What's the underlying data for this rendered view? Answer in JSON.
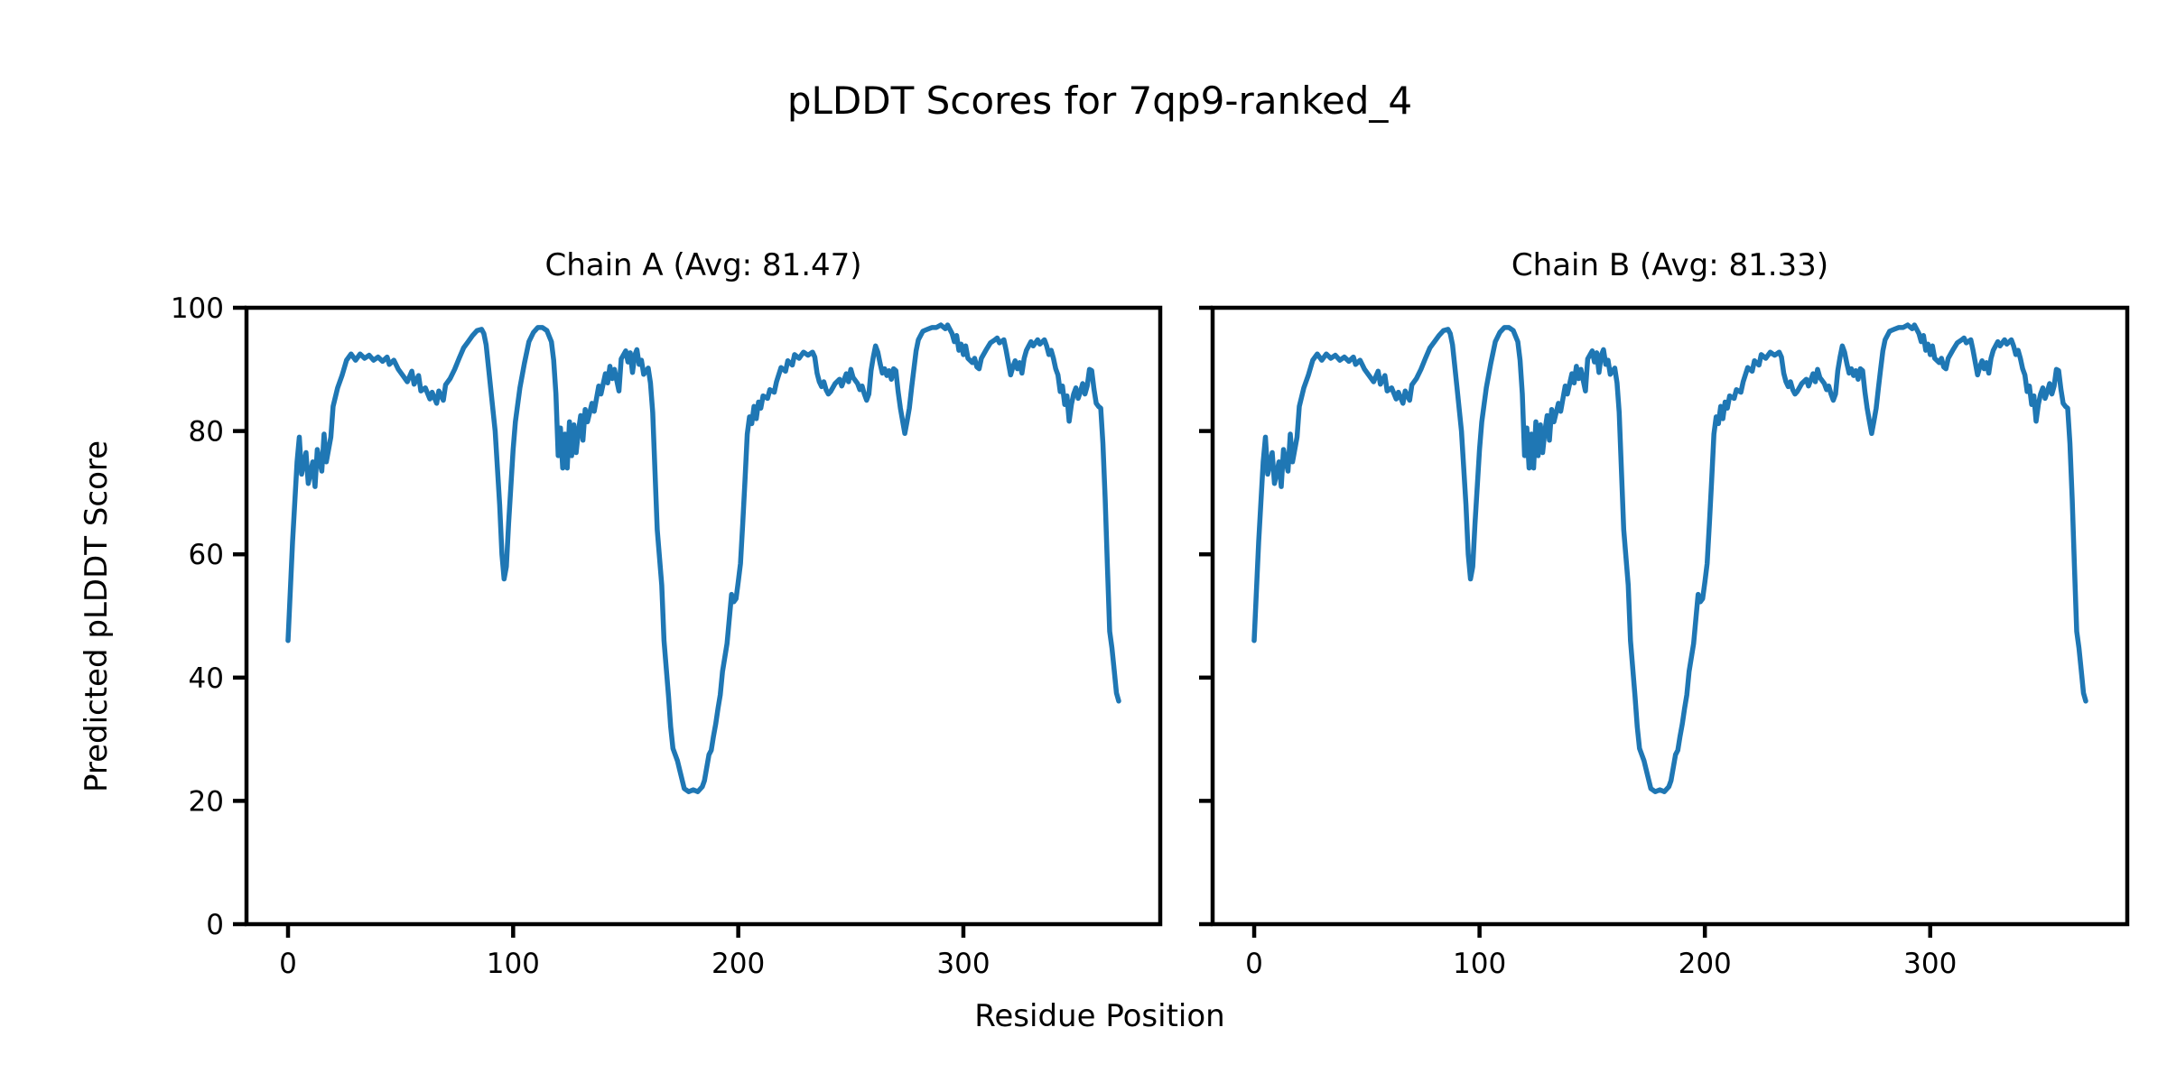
{
  "figure": {
    "suptitle": "pLDDT Scores for 7qp9-ranked_4",
    "supxlabel": "Residue Position",
    "ylabel": "Predicted pLDDT Score",
    "background": "#ffffff",
    "text_color": "#000000"
  },
  "chart_data": {
    "type": "line",
    "title": "pLDDT Scores for 7qp9-ranked_4",
    "xlabel": "Residue Position",
    "ylabel": "Predicted pLDDT Score",
    "line_color": "#1f77b4",
    "axis_color": "#000000",
    "grid": false,
    "legend": "none",
    "xlim": [
      -18.45,
      387.45
    ],
    "ylim": [
      0,
      100
    ],
    "xticks": [
      0,
      100,
      200,
      300
    ],
    "yticks": [
      0,
      20,
      40,
      60,
      80,
      100
    ],
    "subplots": [
      {
        "id": "chain-a",
        "title": "Chain A (Avg: 81.47)",
        "avg": 81.47,
        "show_ytick_labels": true
      },
      {
        "id": "chain-b",
        "title": "Chain B (Avg: 81.33)",
        "avg": 81.33,
        "show_ytick_labels": false
      }
    ],
    "series_note": "Both chains show visually identical pLDDT traces; points are [residue, plddt]",
    "points": [
      [
        0,
        46
      ],
      [
        2,
        62
      ],
      [
        4,
        75
      ],
      [
        5,
        79
      ],
      [
        6,
        73
      ],
      [
        8,
        76.5
      ],
      [
        9,
        71.5
      ],
      [
        11,
        75
      ],
      [
        12,
        71
      ],
      [
        13,
        77
      ],
      [
        15,
        73.5
      ],
      [
        16,
        79.5
      ],
      [
        17,
        75
      ],
      [
        19,
        79
      ],
      [
        20,
        84
      ],
      [
        22,
        87
      ],
      [
        24,
        89
      ],
      [
        26,
        91.5
      ],
      [
        28,
        92.5
      ],
      [
        30,
        91.5
      ],
      [
        32,
        92.5
      ],
      [
        34,
        91.8
      ],
      [
        36,
        92.3
      ],
      [
        38,
        91.5
      ],
      [
        40,
        92
      ],
      [
        42,
        91.3
      ],
      [
        44,
        92
      ],
      [
        45,
        90.8
      ],
      [
        47,
        91.5
      ],
      [
        49,
        90
      ],
      [
        51,
        89
      ],
      [
        53,
        88
      ],
      [
        55,
        89.7
      ],
      [
        56,
        87.6
      ],
      [
        58,
        89
      ],
      [
        59,
        86.5
      ],
      [
        61,
        87
      ],
      [
        63,
        85.2
      ],
      [
        64,
        86.3
      ],
      [
        66,
        84.5
      ],
      [
        67,
        86.5
      ],
      [
        69,
        85
      ],
      [
        70,
        87.5
      ],
      [
        72,
        88.5
      ],
      [
        74,
        90
      ],
      [
        76,
        91.8
      ],
      [
        78,
        93.5
      ],
      [
        80,
        94.5
      ],
      [
        82,
        95.5
      ],
      [
        84,
        96.3
      ],
      [
        86,
        96.5
      ],
      [
        87,
        95.8
      ],
      [
        88,
        94
      ],
      [
        89,
        90.5
      ],
      [
        90,
        87
      ],
      [
        92,
        80
      ],
      [
        94,
        68
      ],
      [
        95,
        60
      ],
      [
        96,
        56
      ],
      [
        97,
        58
      ],
      [
        98,
        65
      ],
      [
        100,
        77
      ],
      [
        101,
        81.5
      ],
      [
        103,
        87
      ],
      [
        105,
        91
      ],
      [
        107,
        94.5
      ],
      [
        109,
        96
      ],
      [
        111,
        96.8
      ],
      [
        113,
        96.8
      ],
      [
        115,
        96.3
      ],
      [
        117,
        94.5
      ],
      [
        118,
        91.5
      ],
      [
        119,
        86
      ],
      [
        120,
        76
      ],
      [
        121,
        80.5
      ],
      [
        122,
        74
      ],
      [
        123,
        79.5
      ],
      [
        124,
        74
      ],
      [
        125,
        81.5
      ],
      [
        126,
        76
      ],
      [
        127,
        81
      ],
      [
        128,
        76.5
      ],
      [
        129,
        80
      ],
      [
        130,
        82.5
      ],
      [
        131,
        78.5
      ],
      [
        132,
        83.5
      ],
      [
        133,
        81.5
      ],
      [
        135,
        84.5
      ],
      [
        136,
        83.2
      ],
      [
        138,
        87.3
      ],
      [
        139,
        86
      ],
      [
        141,
        89.3
      ],
      [
        142,
        87.8
      ],
      [
        143,
        90.5
      ],
      [
        144,
        88.5
      ],
      [
        145,
        90
      ],
      [
        147,
        86.5
      ],
      [
        148,
        91.7
      ],
      [
        150,
        93
      ],
      [
        151,
        91.2
      ],
      [
        152,
        92.7
      ],
      [
        153,
        89.5
      ],
      [
        154,
        92.3
      ],
      [
        155,
        93.2
      ],
      [
        156,
        90.8
      ],
      [
        157,
        91.5
      ],
      [
        158,
        89.2
      ],
      [
        160,
        90.2
      ],
      [
        161,
        87.8
      ],
      [
        162,
        83
      ],
      [
        163,
        73.5
      ],
      [
        164,
        64
      ],
      [
        166,
        55
      ],
      [
        167,
        46
      ],
      [
        169,
        37
      ],
      [
        170,
        32
      ],
      [
        171,
        28.5
      ],
      [
        173,
        26.5
      ],
      [
        174,
        25
      ],
      [
        175,
        23.5
      ],
      [
        176,
        22
      ],
      [
        178,
        21.5
      ],
      [
        180,
        21.8
      ],
      [
        182,
        21.5
      ],
      [
        184,
        22.3
      ],
      [
        185,
        23.3
      ],
      [
        187,
        27.5
      ],
      [
        188,
        28.2
      ],
      [
        189,
        30.5
      ],
      [
        190,
        32.5
      ],
      [
        191,
        35
      ],
      [
        192,
        37.2
      ],
      [
        193,
        41
      ],
      [
        195,
        45.5
      ],
      [
        196,
        49.5
      ],
      [
        197,
        53.5
      ],
      [
        198,
        52.3
      ],
      [
        199,
        52.8
      ],
      [
        200,
        55.5
      ],
      [
        201,
        58.5
      ],
      [
        202,
        65
      ],
      [
        203,
        72
      ],
      [
        204,
        79.5
      ],
      [
        205,
        82.3
      ],
      [
        206,
        81.2
      ],
      [
        207,
        84
      ],
      [
        208,
        82
      ],
      [
        209,
        84.7
      ],
      [
        210,
        83.7
      ],
      [
        211,
        85.7
      ],
      [
        213,
        85.3
      ],
      [
        214,
        86.7
      ],
      [
        216,
        86.3
      ],
      [
        217,
        88
      ],
      [
        219,
        90.3
      ],
      [
        221,
        89.7
      ],
      [
        222,
        91.4
      ],
      [
        224,
        90.7
      ],
      [
        225,
        92.4
      ],
      [
        227,
        91.8
      ],
      [
        229,
        92.8
      ],
      [
        231,
        92.3
      ],
      [
        233,
        92.8
      ],
      [
        234,
        92
      ],
      [
        235,
        89.4
      ],
      [
        236,
        88
      ],
      [
        237,
        87.2
      ],
      [
        238,
        88
      ],
      [
        239,
        86.7
      ],
      [
        240,
        86
      ],
      [
        241,
        86.4
      ],
      [
        243,
        87.7
      ],
      [
        245,
        88.4
      ],
      [
        246,
        87.3
      ],
      [
        248,
        89.3
      ],
      [
        249,
        88
      ],
      [
        250,
        90
      ],
      [
        251,
        88.7
      ],
      [
        253,
        87.7
      ],
      [
        254,
        86.7
      ],
      [
        255,
        87.3
      ],
      [
        256,
        86
      ],
      [
        257,
        85
      ],
      [
        258,
        86
      ],
      [
        259,
        89.8
      ],
      [
        260,
        92
      ],
      [
        261,
        93.8
      ],
      [
        262,
        92.8
      ],
      [
        263,
        91
      ],
      [
        264,
        89.4
      ],
      [
        265,
        90.1
      ],
      [
        266,
        89
      ],
      [
        267,
        89.8
      ],
      [
        268,
        88.4
      ],
      [
        269,
        90.1
      ],
      [
        270,
        89.8
      ],
      [
        271,
        86.4
      ],
      [
        272,
        83.7
      ],
      [
        273,
        81.6
      ],
      [
        274,
        79.6
      ],
      [
        275,
        81.6
      ],
      [
        276,
        83.7
      ],
      [
        277,
        87
      ],
      [
        278,
        90
      ],
      [
        279,
        93
      ],
      [
        280,
        94.8
      ],
      [
        282,
        96.2
      ],
      [
        284,
        96.5
      ],
      [
        286,
        96.8
      ],
      [
        288,
        96.8
      ],
      [
        290,
        97.2
      ],
      [
        292,
        96.6
      ],
      [
        293,
        97.2
      ],
      [
        295,
        95.8
      ],
      [
        296,
        94.5
      ],
      [
        297,
        95.5
      ],
      [
        298,
        93.1
      ],
      [
        299,
        94.1
      ],
      [
        300,
        92.4
      ],
      [
        301,
        93.8
      ],
      [
        302,
        91.8
      ],
      [
        304,
        91.1
      ],
      [
        305,
        91.8
      ],
      [
        306,
        90.4
      ],
      [
        307,
        90.1
      ],
      [
        308,
        91.8
      ],
      [
        310,
        93.1
      ],
      [
        312,
        94.3
      ],
      [
        314,
        94.8
      ],
      [
        315,
        95.1
      ],
      [
        316,
        94.3
      ],
      [
        318,
        94.8
      ],
      [
        319,
        93.1
      ],
      [
        320,
        91.1
      ],
      [
        321,
        89.1
      ],
      [
        322,
        90.4
      ],
      [
        323,
        91.4
      ],
      [
        324,
        90.1
      ],
      [
        325,
        91.1
      ],
      [
        326,
        89.4
      ],
      [
        327,
        91.8
      ],
      [
        328,
        93.1
      ],
      [
        330,
        94.5
      ],
      [
        331,
        93.8
      ],
      [
        333,
        94.8
      ],
      [
        334,
        94.1
      ],
      [
        336,
        94.8
      ],
      [
        337,
        93.8
      ],
      [
        338,
        92.4
      ],
      [
        339,
        93.1
      ],
      [
        340,
        91.8
      ],
      [
        341,
        90.1
      ],
      [
        342,
        89.1
      ],
      [
        343,
        86.4
      ],
      [
        344,
        87.3
      ],
      [
        345,
        84.3
      ],
      [
        346,
        85.7
      ],
      [
        347,
        81.6
      ],
      [
        348,
        84.3
      ],
      [
        349,
        86
      ],
      [
        350,
        87
      ],
      [
        351,
        85.3
      ],
      [
        352,
        86.4
      ],
      [
        353,
        87.7
      ],
      [
        354,
        86
      ],
      [
        355,
        87.3
      ],
      [
        356,
        90
      ],
      [
        357,
        89.8
      ],
      [
        358,
        86.8
      ],
      [
        359,
        84.5
      ],
      [
        360,
        84
      ],
      [
        361,
        83.7
      ],
      [
        362,
        78
      ],
      [
        363,
        69
      ],
      [
        364,
        58
      ],
      [
        365,
        47.5
      ],
      [
        366,
        44.8
      ],
      [
        367,
        41.2
      ],
      [
        368,
        37.5
      ],
      [
        369,
        36.2
      ]
    ]
  }
}
